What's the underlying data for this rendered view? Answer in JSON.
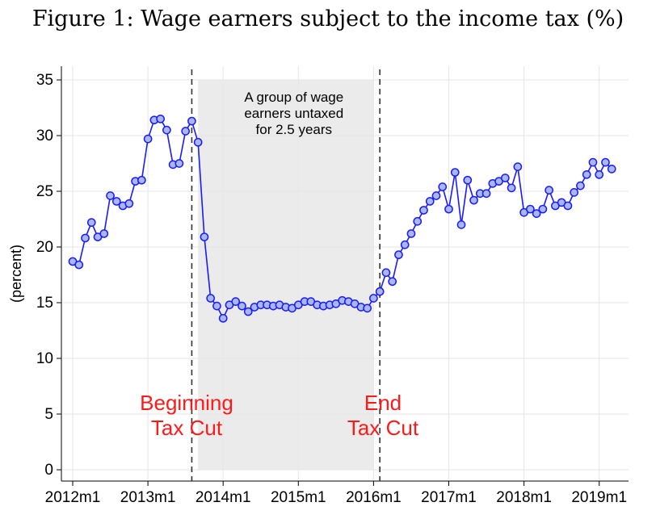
{
  "title": "Figure 1: Wage earners subject to the income tax (%)",
  "chart_data": {
    "type": "line",
    "title": "Figure 1: Wage earners subject to the income tax (%)",
    "xlabel": "",
    "ylabel": "(percent)",
    "ylim": [
      0,
      35
    ],
    "xlim": [
      "2012-01",
      "2019-03"
    ],
    "yticks": [
      0,
      5,
      10,
      15,
      20,
      25,
      30,
      35
    ],
    "xticks": [
      "2012m1",
      "2013m1",
      "2014m1",
      "2015m1",
      "2016m1",
      "2017m1",
      "2018m1",
      "2019m1"
    ],
    "grid": true,
    "legend": "none",
    "line_color": "#1a1aff",
    "marker_fill": "#a9b8f5",
    "shade_color": "#ebebeb",
    "annotation_color": "#ff1a1a",
    "shaded_region": [
      "2013-09",
      "2016-01"
    ],
    "vlines": [
      "2013-08",
      "2016-02"
    ],
    "annotations": {
      "shade_note": [
        "A group of wage",
        "earners untaxed",
        "for 2.5 years"
      ],
      "beginning": [
        "Beginning",
        "Tax Cut"
      ],
      "end": [
        "End",
        "Tax Cut"
      ]
    },
    "x": [
      "2012-01",
      "2012-02",
      "2012-03",
      "2012-04",
      "2012-05",
      "2012-06",
      "2012-07",
      "2012-08",
      "2012-09",
      "2012-10",
      "2012-11",
      "2012-12",
      "2013-01",
      "2013-02",
      "2013-03",
      "2013-04",
      "2013-05",
      "2013-06",
      "2013-07",
      "2013-08",
      "2013-09",
      "2013-10",
      "2013-11",
      "2013-12",
      "2014-01",
      "2014-02",
      "2014-03",
      "2014-04",
      "2014-05",
      "2014-06",
      "2014-07",
      "2014-08",
      "2014-09",
      "2014-10",
      "2014-11",
      "2014-12",
      "2015-01",
      "2015-02",
      "2015-03",
      "2015-04",
      "2015-05",
      "2015-06",
      "2015-07",
      "2015-08",
      "2015-09",
      "2015-10",
      "2015-11",
      "2015-12",
      "2016-01",
      "2016-02",
      "2016-03",
      "2016-04",
      "2016-05",
      "2016-06",
      "2016-07",
      "2016-08",
      "2016-09",
      "2016-10",
      "2016-11",
      "2016-12",
      "2017-01",
      "2017-02",
      "2017-03",
      "2017-04",
      "2017-05",
      "2017-06",
      "2017-07",
      "2017-08",
      "2017-09",
      "2017-10",
      "2017-11",
      "2017-12",
      "2018-01",
      "2018-02",
      "2018-03",
      "2018-04",
      "2018-05",
      "2018-06",
      "2018-07",
      "2018-08",
      "2018-09",
      "2018-10",
      "2018-11",
      "2018-12",
      "2019-01",
      "2019-02",
      "2019-03"
    ],
    "values": [
      18.7,
      18.4,
      20.8,
      22.2,
      20.9,
      21.2,
      24.6,
      24.1,
      23.7,
      23.9,
      25.9,
      26.0,
      29.7,
      31.4,
      31.5,
      30.5,
      27.4,
      27.5,
      30.4,
      31.3,
      29.4,
      20.9,
      15.4,
      14.7,
      13.6,
      14.8,
      15.1,
      14.7,
      14.2,
      14.6,
      14.8,
      14.8,
      14.7,
      14.8,
      14.6,
      14.5,
      14.8,
      15.1,
      15.1,
      14.8,
      14.7,
      14.8,
      14.9,
      15.2,
      15.1,
      14.9,
      14.6,
      14.5,
      15.4,
      16.0,
      17.7,
      16.9,
      19.3,
      20.2,
      21.2,
      22.3,
      23.3,
      24.1,
      24.6,
      25.4,
      23.4,
      26.7,
      22.0,
      26.0,
      24.2,
      24.8,
      24.8,
      25.7,
      25.9,
      26.2,
      25.3,
      27.2,
      23.1,
      23.4,
      23.0,
      23.4,
      25.1,
      23.7,
      24.0,
      23.7,
      24.9,
      25.5,
      26.5,
      27.6,
      26.5,
      27.6,
      27.0
    ]
  }
}
